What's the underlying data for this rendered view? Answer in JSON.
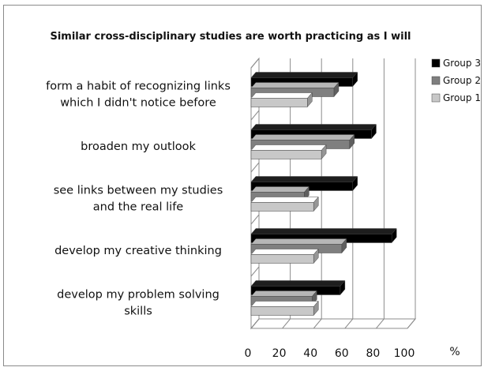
{
  "chart_data": {
    "type": "bar",
    "orientation": "horizontal",
    "title": "Similar cross-disciplinary studies are worth practicing as I will",
    "categories": [
      [
        "form a habit of recognizing links",
        "which I didn't notice before"
      ],
      [
        "broaden my outlook"
      ],
      [
        "see links between my studies",
        "and the real life"
      ],
      [
        "develop my creative thinking"
      ],
      [
        "develop my problem solving",
        "skills"
      ]
    ],
    "series": [
      {
        "name": "Group 3",
        "color": "#000000",
        "values": [
          65,
          77,
          65,
          90,
          57
        ]
      },
      {
        "name": "Group 2",
        "color": "#7f7f7f",
        "values": [
          53,
          63,
          34,
          58,
          39
        ]
      },
      {
        "name": "Group 1",
        "color": "#c8c8c8",
        "values": [
          36,
          45,
          40,
          40,
          40
        ]
      }
    ],
    "xlim": [
      0,
      100
    ],
    "xticks": [
      "0",
      "20",
      "40",
      "60",
      "80",
      "100"
    ],
    "unit_label": "%",
    "legend_position": "right",
    "grid": true,
    "style": "3d"
  }
}
